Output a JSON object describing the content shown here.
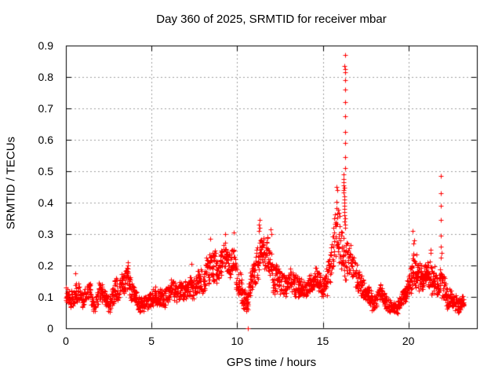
{
  "colors": {
    "background": "#ffffff",
    "frame": "#000000",
    "grid": "#a0a0a0",
    "marker": "#ff0000",
    "text": "#000000"
  },
  "chart_data": {
    "type": "scatter",
    "title": "Day 360 of 2025, SRMTID for receiver mbar",
    "xlabel": "GPS time / hours",
    "ylabel": "SRMTID / TECUs",
    "xlim": [
      0,
      24
    ],
    "ylim": [
      0,
      0.9
    ],
    "xtick_labels": [
      "0",
      "5",
      "10",
      "15",
      "20"
    ],
    "ytick_labels": [
      "0",
      "0.1",
      "0.2",
      "0.3",
      "0.4",
      "0.5",
      "0.6",
      "0.7",
      "0.8",
      "0.9"
    ],
    "grid": true,
    "legend": "none",
    "marker": "+",
    "marker_size_px": 7,
    "time_start": 0,
    "time_end": 23.25,
    "seed": 1360,
    "band_profile": [
      [
        0.0,
        0.07,
        0.15
      ],
      [
        0.3,
        0.06,
        0.13
      ],
      [
        0.6,
        0.07,
        0.16
      ],
      [
        0.9,
        0.05,
        0.12
      ],
      [
        1.1,
        0.06,
        0.14
      ],
      [
        1.35,
        0.08,
        0.16
      ],
      [
        1.6,
        0.05,
        0.12
      ],
      [
        1.85,
        0.06,
        0.13
      ],
      [
        2.0,
        0.07,
        0.16
      ],
      [
        2.3,
        0.06,
        0.14
      ],
      [
        2.55,
        0.04,
        0.12
      ],
      [
        2.8,
        0.07,
        0.17
      ],
      [
        3.05,
        0.08,
        0.18
      ],
      [
        3.3,
        0.09,
        0.19
      ],
      [
        3.6,
        0.08,
        0.2
      ],
      [
        3.85,
        0.07,
        0.16
      ],
      [
        4.1,
        0.05,
        0.12
      ],
      [
        4.4,
        0.04,
        0.11
      ],
      [
        4.7,
        0.05,
        0.12
      ],
      [
        5.0,
        0.06,
        0.14
      ],
      [
        5.3,
        0.07,
        0.15
      ],
      [
        5.6,
        0.06,
        0.14
      ],
      [
        5.9,
        0.07,
        0.16
      ],
      [
        6.2,
        0.08,
        0.17
      ],
      [
        6.5,
        0.07,
        0.16
      ],
      [
        6.8,
        0.06,
        0.14
      ],
      [
        7.1,
        0.08,
        0.17
      ],
      [
        7.4,
        0.09,
        0.18
      ],
      [
        7.7,
        0.08,
        0.18
      ],
      [
        8.0,
        0.1,
        0.21
      ],
      [
        8.3,
        0.12,
        0.25
      ],
      [
        8.6,
        0.13,
        0.27
      ],
      [
        8.9,
        0.13,
        0.25
      ],
      [
        9.2,
        0.15,
        0.28
      ],
      [
        9.5,
        0.14,
        0.27
      ],
      [
        9.8,
        0.15,
        0.29
      ],
      [
        10.1,
        0.1,
        0.22
      ],
      [
        10.35,
        0.06,
        0.16
      ],
      [
        10.6,
        0.05,
        0.14
      ],
      [
        10.9,
        0.1,
        0.22
      ],
      [
        11.2,
        0.14,
        0.31
      ],
      [
        11.45,
        0.13,
        0.28
      ],
      [
        11.7,
        0.13,
        0.3
      ],
      [
        11.95,
        0.12,
        0.28
      ],
      [
        12.2,
        0.11,
        0.24
      ],
      [
        12.5,
        0.1,
        0.22
      ],
      [
        12.8,
        0.1,
        0.2
      ],
      [
        13.1,
        0.09,
        0.19
      ],
      [
        13.4,
        0.1,
        0.2
      ],
      [
        13.7,
        0.08,
        0.17
      ],
      [
        14.0,
        0.08,
        0.16
      ],
      [
        14.3,
        0.09,
        0.18
      ],
      [
        14.6,
        0.1,
        0.2
      ],
      [
        14.9,
        0.09,
        0.18
      ],
      [
        15.2,
        0.1,
        0.22
      ],
      [
        15.5,
        0.12,
        0.28
      ],
      [
        15.75,
        0.15,
        0.4
      ],
      [
        15.9,
        0.16,
        0.44
      ],
      [
        16.1,
        0.14,
        0.36
      ],
      [
        16.3,
        0.12,
        0.31
      ],
      [
        16.55,
        0.12,
        0.28
      ],
      [
        16.8,
        0.12,
        0.26
      ],
      [
        17.1,
        0.1,
        0.22
      ],
      [
        17.4,
        0.09,
        0.18
      ],
      [
        17.7,
        0.06,
        0.14
      ],
      [
        18.0,
        0.04,
        0.12
      ],
      [
        18.3,
        0.08,
        0.17
      ],
      [
        18.6,
        0.06,
        0.13
      ],
      [
        18.9,
        0.04,
        0.1
      ],
      [
        19.2,
        0.03,
        0.09
      ],
      [
        19.5,
        0.05,
        0.11
      ],
      [
        19.8,
        0.07,
        0.14
      ],
      [
        20.1,
        0.09,
        0.2
      ],
      [
        20.4,
        0.1,
        0.27
      ],
      [
        20.7,
        0.1,
        0.22
      ],
      [
        21.0,
        0.1,
        0.2
      ],
      [
        21.3,
        0.11,
        0.25
      ],
      [
        21.6,
        0.09,
        0.2
      ],
      [
        21.9,
        0.08,
        0.22
      ],
      [
        22.2,
        0.06,
        0.16
      ],
      [
        22.5,
        0.05,
        0.14
      ],
      [
        22.8,
        0.05,
        0.13
      ],
      [
        23.0,
        0.04,
        0.12
      ],
      [
        23.25,
        0.05,
        0.1
      ]
    ],
    "outlier_points": [
      [
        10.63,
        0.0
      ],
      [
        0.55,
        0.175
      ],
      [
        3.62,
        0.21
      ],
      [
        7.35,
        0.205
      ],
      [
        8.45,
        0.285
      ],
      [
        9.3,
        0.3
      ],
      [
        9.82,
        0.305
      ],
      [
        11.25,
        0.31
      ],
      [
        11.28,
        0.33
      ],
      [
        11.3,
        0.345
      ],
      [
        11.33,
        0.32
      ],
      [
        11.97,
        0.315
      ],
      [
        12.0,
        0.3
      ],
      [
        15.78,
        0.45
      ],
      [
        15.85,
        0.44
      ],
      [
        16.3,
        0.87
      ],
      [
        16.28,
        0.835
      ],
      [
        16.31,
        0.825
      ],
      [
        16.29,
        0.815
      ],
      [
        16.3,
        0.79
      ],
      [
        16.3,
        0.76
      ],
      [
        16.3,
        0.72
      ],
      [
        16.3,
        0.675
      ],
      [
        16.3,
        0.625
      ],
      [
        16.3,
        0.59
      ],
      [
        16.3,
        0.545
      ],
      [
        16.3,
        0.51
      ],
      [
        16.22,
        0.49
      ],
      [
        16.21,
        0.475
      ],
      [
        16.23,
        0.465
      ],
      [
        16.2,
        0.455
      ],
      [
        16.24,
        0.448
      ],
      [
        16.21,
        0.44
      ],
      [
        16.23,
        0.432
      ],
      [
        16.25,
        0.42
      ],
      [
        16.26,
        0.41
      ],
      [
        16.24,
        0.4
      ],
      [
        16.27,
        0.39
      ],
      [
        16.25,
        0.38
      ],
      [
        16.28,
        0.37
      ],
      [
        16.26,
        0.36
      ],
      [
        16.3,
        0.35
      ],
      [
        16.28,
        0.34
      ],
      [
        16.32,
        0.33
      ],
      [
        16.3,
        0.32
      ],
      [
        20.25,
        0.31
      ],
      [
        20.32,
        0.28
      ],
      [
        20.28,
        0.27
      ],
      [
        21.3,
        0.25
      ],
      [
        21.28,
        0.24
      ],
      [
        21.9,
        0.485
      ],
      [
        21.9,
        0.43
      ],
      [
        21.9,
        0.39
      ],
      [
        21.9,
        0.345
      ],
      [
        21.9,
        0.295
      ],
      [
        21.88,
        0.26
      ],
      [
        21.92,
        0.24
      ],
      [
        21.9,
        0.225
      ]
    ]
  }
}
